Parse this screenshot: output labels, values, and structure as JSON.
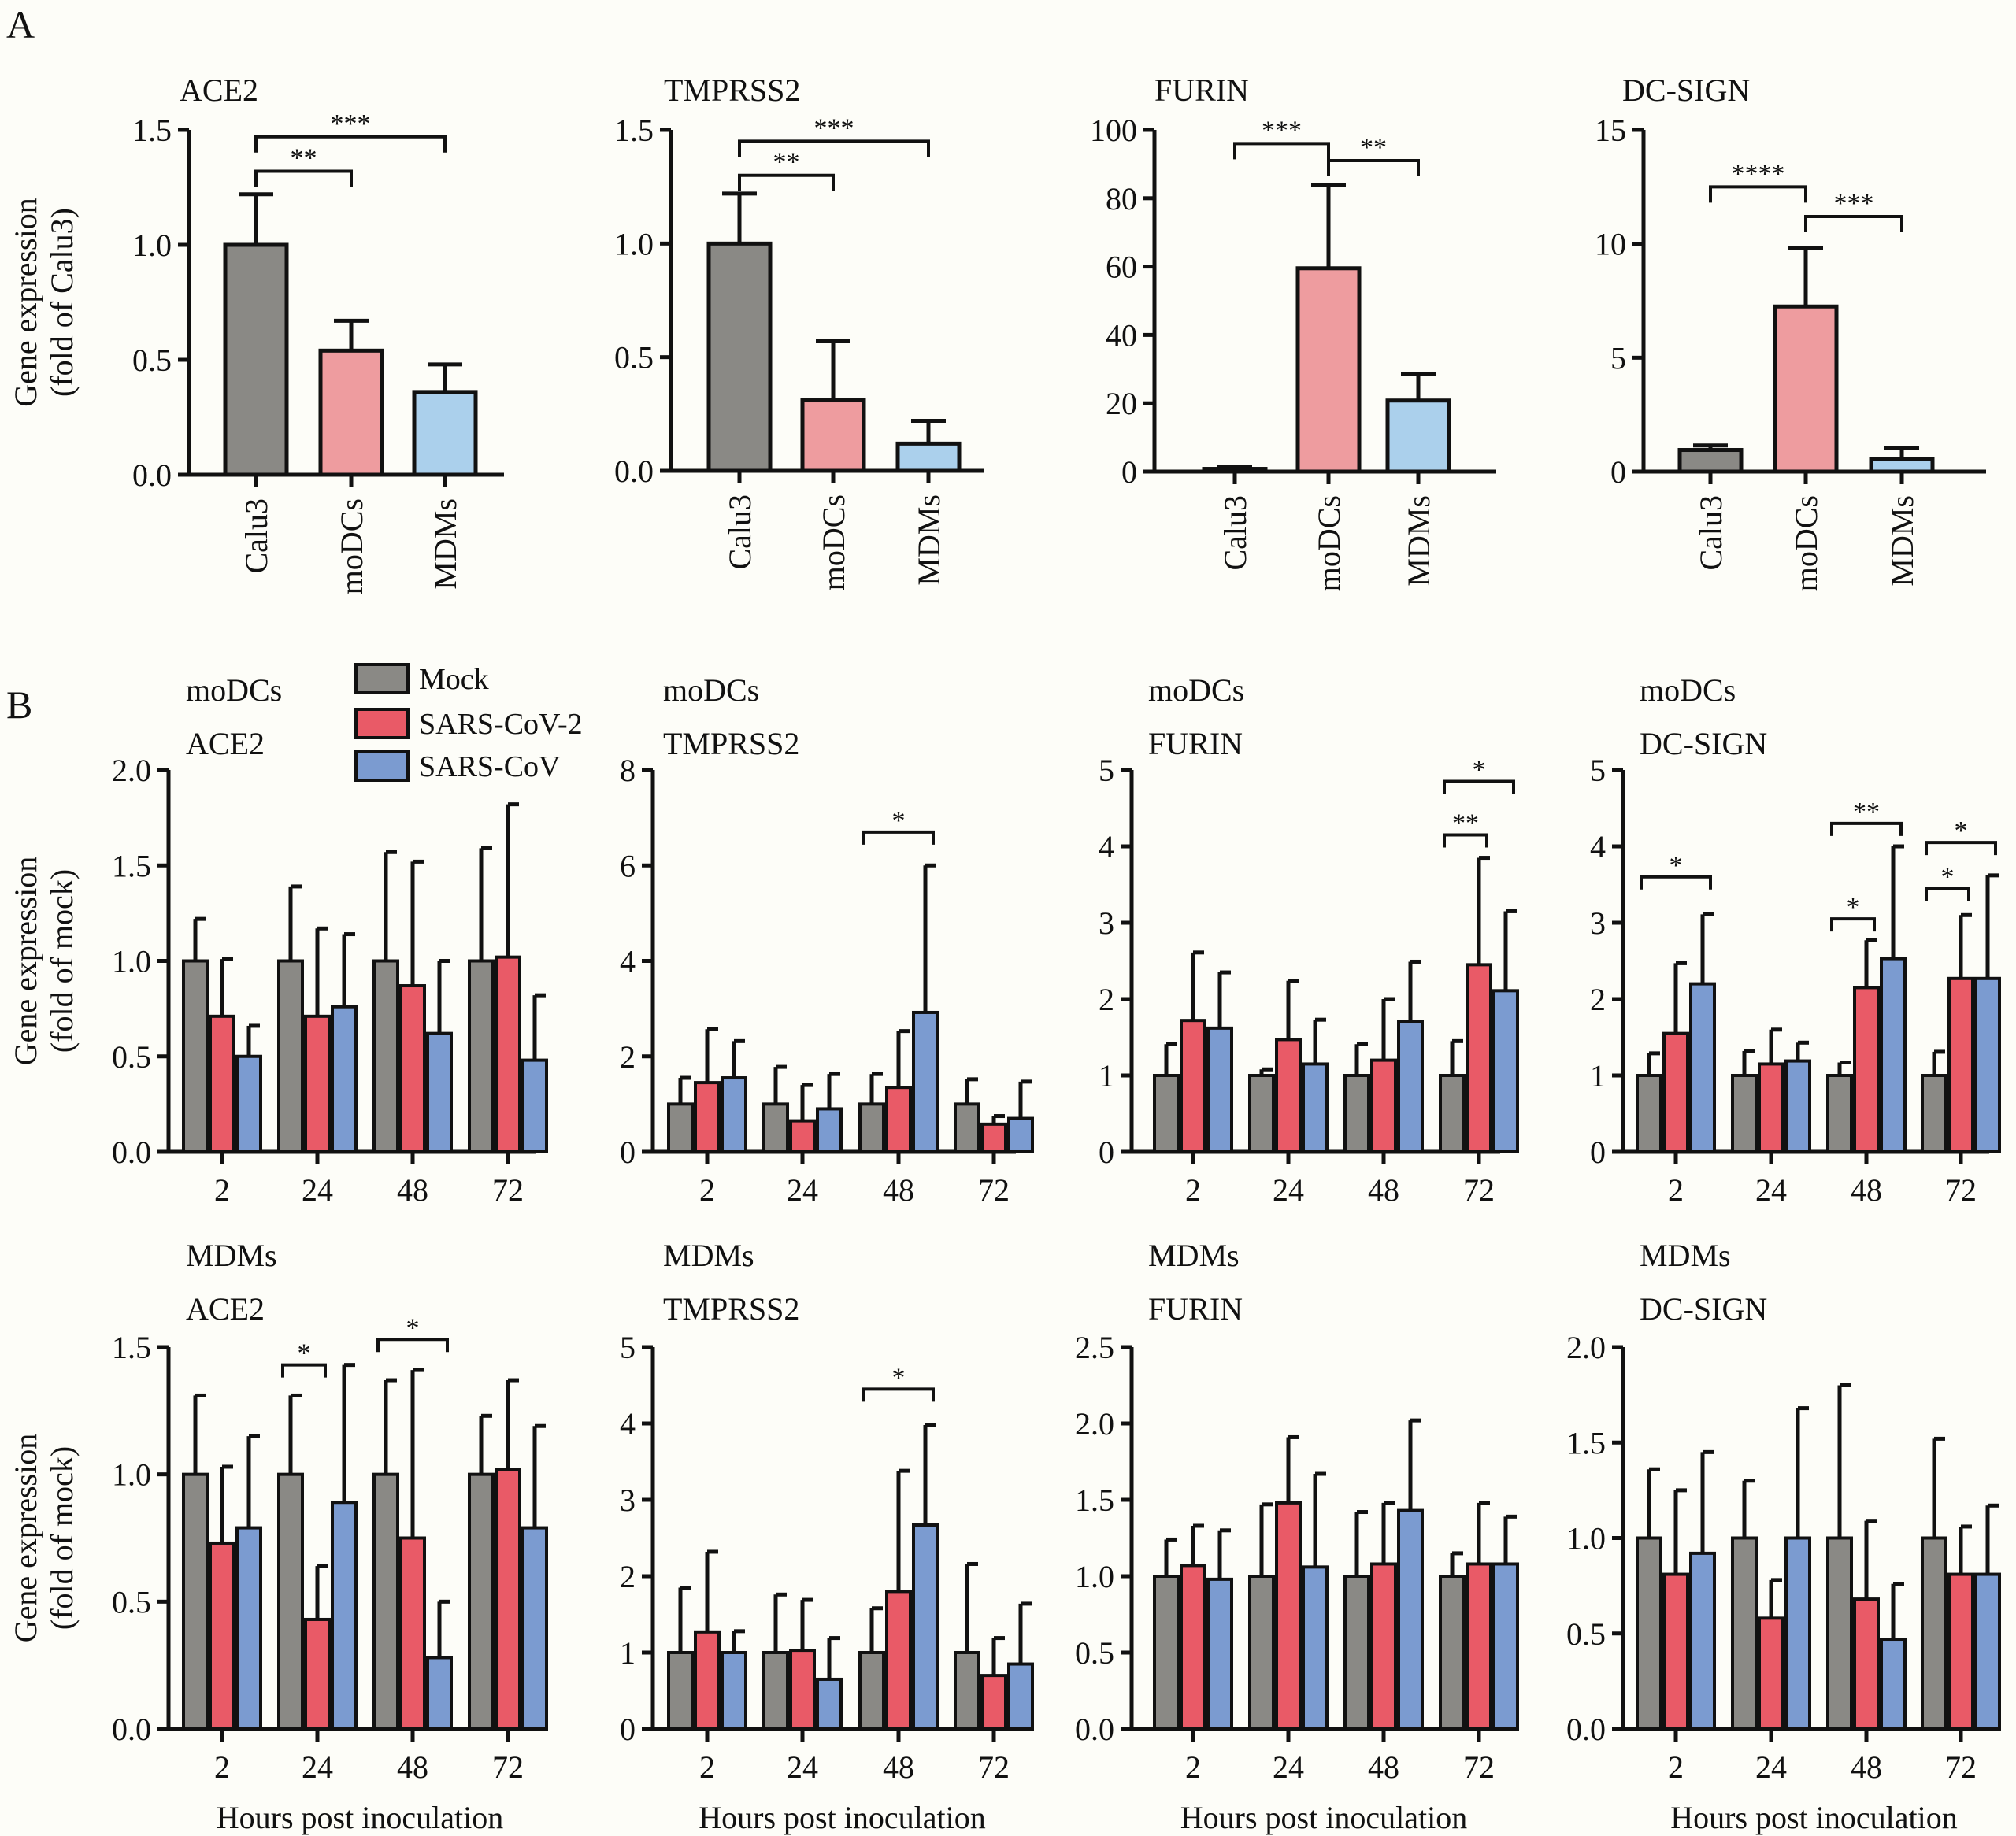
{
  "figure": {
    "panel_labels": [
      "A",
      "B"
    ],
    "legend": [
      {
        "label": "Mock",
        "color": "#8a8985"
      },
      {
        "label": "SARS-CoV-2",
        "color": "#e95a67"
      },
      {
        "label": "SARS-CoV",
        "color": "#7b9bd0"
      }
    ],
    "panel_a_colors": {
      "Calu3": "#8a8985",
      "moDCs": "#ee9c9f",
      "MDMs": "#abd0ec"
    }
  },
  "chart_data": [
    {
      "id": "A-ACE2",
      "panel": "A",
      "type": "bar",
      "title": "ACE2",
      "ylabel": [
        "Gene expression",
        "(fold of Calu3)"
      ],
      "xlabel": "",
      "categories": [
        "Calu3",
        "moDCs",
        "MDMs"
      ],
      "values": [
        1.0,
        0.54,
        0.36
      ],
      "error_upper": [
        1.22,
        0.67,
        0.48
      ],
      "ylim": [
        0,
        1.5
      ],
      "yticks": [
        "0.0",
        "0.5",
        "1.0",
        "1.5"
      ],
      "ytick_values": [
        0,
        0.5,
        1.0,
        1.5
      ],
      "significance": [
        {
          "from": "Calu3",
          "to": "moDCs",
          "label": "**",
          "level": 1.32
        },
        {
          "from": "Calu3",
          "to": "MDMs",
          "label": "***",
          "level": 1.47
        }
      ]
    },
    {
      "id": "A-TMPRSS2",
      "panel": "A",
      "type": "bar",
      "title": "TMPRSS2",
      "ylabel": [],
      "xlabel": "",
      "categories": [
        "Calu3",
        "moDCs",
        "MDMs"
      ],
      "values": [
        1.0,
        0.31,
        0.12
      ],
      "error_upper": [
        1.22,
        0.57,
        0.22
      ],
      "ylim": [
        0,
        1.5
      ],
      "yticks": [
        "0.0",
        "0.5",
        "1.0",
        "1.5"
      ],
      "ytick_values": [
        0,
        0.5,
        1.0,
        1.5
      ],
      "significance": [
        {
          "from": "Calu3",
          "to": "moDCs",
          "label": "**",
          "level": 1.3
        },
        {
          "from": "Calu3",
          "to": "MDMs",
          "label": "***",
          "level": 1.45
        }
      ]
    },
    {
      "id": "A-FURIN",
      "panel": "A",
      "type": "bar",
      "title": "FURIN",
      "ylabel": [],
      "xlabel": "",
      "categories": [
        "Calu3",
        "moDCs",
        "MDMs"
      ],
      "values": [
        0.8,
        59.5,
        20.8
      ],
      "error_upper": [
        1.5,
        84,
        28.5
      ],
      "ylim": [
        0,
        100
      ],
      "yticks": [
        "0",
        "20",
        "40",
        "60",
        "80",
        "100"
      ],
      "ytick_values": [
        0,
        20,
        40,
        60,
        80,
        100
      ],
      "significance": [
        {
          "from": "Calu3",
          "to": "moDCs",
          "label": "***",
          "level": 96
        },
        {
          "from": "moDCs",
          "to": "MDMs",
          "label": "**",
          "level": 91
        }
      ]
    },
    {
      "id": "A-DC-SIGN",
      "panel": "A",
      "type": "bar",
      "title": "DC-SIGN",
      "ylabel": [],
      "xlabel": "",
      "categories": [
        "Calu3",
        "moDCs",
        "MDMs"
      ],
      "values": [
        0.95,
        7.25,
        0.55
      ],
      "error_upper": [
        1.15,
        9.8,
        1.05
      ],
      "ylim": [
        0,
        15
      ],
      "yticks": [
        "0",
        "5",
        "10",
        "15"
      ],
      "ytick_values": [
        0,
        5,
        10,
        15
      ],
      "significance": [
        {
          "from": "Calu3",
          "to": "moDCs",
          "label": "****",
          "level": 12.5
        },
        {
          "from": "moDCs",
          "to": "MDMs",
          "label": "***",
          "level": 11.2
        }
      ]
    },
    {
      "id": "B-moDCs-ACE2",
      "panel": "B",
      "type": "bar",
      "cell": "moDCs",
      "title": "ACE2",
      "ylabel": [
        "Gene expression",
        "(fold of mock)"
      ],
      "xlabel": "",
      "categories": [
        "2",
        "24",
        "48",
        "72"
      ],
      "series": [
        {
          "name": "Mock",
          "values": [
            1.0,
            1.0,
            1.0,
            1.0
          ],
          "error_upper": [
            1.22,
            1.39,
            1.57,
            1.59
          ]
        },
        {
          "name": "SARS-CoV-2",
          "values": [
            0.71,
            0.71,
            0.87,
            1.02
          ],
          "error_upper": [
            1.01,
            1.17,
            1.52,
            1.82
          ]
        },
        {
          "name": "SARS-CoV",
          "values": [
            0.5,
            0.76,
            0.62,
            0.48
          ],
          "error_upper": [
            0.66,
            1.14,
            1.0,
            0.82
          ]
        }
      ],
      "ylim": [
        0,
        2.0
      ],
      "yticks": [
        "0.0",
        "0.5",
        "1.0",
        "1.5",
        "2.0"
      ],
      "ytick_values": [
        0,
        0.5,
        1.0,
        1.5,
        2.0
      ],
      "significance": []
    },
    {
      "id": "B-moDCs-TMPRSS2",
      "panel": "B",
      "type": "bar",
      "cell": "moDCs",
      "title": "TMPRSS2",
      "ylabel": [],
      "xlabel": "",
      "categories": [
        "2",
        "24",
        "48",
        "72"
      ],
      "series": [
        {
          "name": "Mock",
          "values": [
            1.0,
            1.0,
            1.0,
            1.0
          ],
          "error_upper": [
            1.55,
            1.78,
            1.63,
            1.52
          ]
        },
        {
          "name": "SARS-CoV-2",
          "values": [
            1.45,
            0.65,
            1.35,
            0.58
          ],
          "error_upper": [
            2.57,
            1.4,
            2.53,
            0.75
          ]
        },
        {
          "name": "SARS-CoV",
          "values": [
            1.55,
            0.9,
            2.92,
            0.7
          ],
          "error_upper": [
            2.32,
            1.63,
            6.0,
            1.47
          ]
        }
      ],
      "ylim": [
        0,
        8
      ],
      "yticks": [
        "0",
        "2",
        "4",
        "6",
        "8"
      ],
      "ytick_values": [
        0,
        2,
        4,
        6,
        8
      ],
      "significance": [
        {
          "group": "48",
          "from": 0,
          "to": 2,
          "label": "*",
          "level": 6.7
        }
      ]
    },
    {
      "id": "B-moDCs-FURIN",
      "panel": "B",
      "type": "bar",
      "cell": "moDCs",
      "title": "FURIN",
      "ylabel": [],
      "xlabel": "",
      "categories": [
        "2",
        "24",
        "48",
        "72"
      ],
      "series": [
        {
          "name": "Mock",
          "values": [
            1.0,
            1.0,
            1.0,
            1.0
          ],
          "error_upper": [
            1.41,
            1.08,
            1.41,
            1.45
          ]
        },
        {
          "name": "SARS-CoV-2",
          "values": [
            1.72,
            1.47,
            1.2,
            2.45
          ],
          "error_upper": [
            2.61,
            2.24,
            2.0,
            3.85
          ]
        },
        {
          "name": "SARS-CoV",
          "values": [
            1.62,
            1.15,
            1.71,
            2.11
          ],
          "error_upper": [
            2.35,
            1.73,
            2.49,
            3.15
          ]
        }
      ],
      "ylim": [
        0,
        5
      ],
      "yticks": [
        "0",
        "1",
        "2",
        "3",
        "4",
        "5"
      ],
      "ytick_values": [
        0,
        1,
        2,
        3,
        4,
        5
      ],
      "significance": [
        {
          "group": "72",
          "from": 0,
          "to": 1,
          "label": "**",
          "level": 4.15
        },
        {
          "group": "72",
          "from": 0,
          "to": 2,
          "label": "*",
          "level": 4.85
        }
      ]
    },
    {
      "id": "B-moDCs-DC-SIGN",
      "panel": "B",
      "type": "bar",
      "cell": "moDCs",
      "title": "DC-SIGN",
      "ylabel": [],
      "xlabel": "",
      "categories": [
        "2",
        "24",
        "48",
        "72"
      ],
      "series": [
        {
          "name": "Mock",
          "values": [
            1.0,
            1.0,
            1.0,
            1.0
          ],
          "error_upper": [
            1.29,
            1.32,
            1.17,
            1.31
          ]
        },
        {
          "name": "SARS-CoV-2",
          "values": [
            1.55,
            1.15,
            2.15,
            2.27
          ],
          "error_upper": [
            2.47,
            1.6,
            2.77,
            3.1
          ]
        },
        {
          "name": "SARS-CoV",
          "values": [
            2.2,
            1.19,
            2.53,
            2.27
          ],
          "error_upper": [
            3.11,
            1.43,
            4.0,
            3.62
          ]
        }
      ],
      "ylim": [
        0,
        5
      ],
      "yticks": [
        "0",
        "1",
        "2",
        "3",
        "4",
        "5"
      ],
      "ytick_values": [
        0,
        1,
        2,
        3,
        4,
        5
      ],
      "significance": [
        {
          "group": "2",
          "from": 0,
          "to": 2,
          "label": "*",
          "level": 3.6
        },
        {
          "group": "48",
          "from": 0,
          "to": 1,
          "label": "*",
          "level": 3.05
        },
        {
          "group": "48",
          "from": 0,
          "to": 2,
          "label": "**",
          "level": 4.3
        },
        {
          "group": "72",
          "from": 0,
          "to": 1,
          "label": "*",
          "level": 3.45
        },
        {
          "group": "72",
          "from": 0,
          "to": 2,
          "label": "*",
          "level": 4.05
        }
      ]
    },
    {
      "id": "B-MDMs-ACE2",
      "panel": "B",
      "type": "bar",
      "cell": "MDMs",
      "title": "ACE2",
      "ylabel": [
        "Gene expression",
        "(fold of mock)"
      ],
      "xlabel": "Hours post inoculation",
      "categories": [
        "2",
        "24",
        "48",
        "72"
      ],
      "series": [
        {
          "name": "Mock",
          "values": [
            1.0,
            1.0,
            1.0,
            1.0
          ],
          "error_upper": [
            1.31,
            1.31,
            1.37,
            1.23
          ]
        },
        {
          "name": "SARS-CoV-2",
          "values": [
            0.73,
            0.43,
            0.75,
            1.02
          ],
          "error_upper": [
            1.03,
            0.64,
            1.41,
            1.37
          ]
        },
        {
          "name": "SARS-CoV",
          "values": [
            0.79,
            0.89,
            0.28,
            0.79
          ],
          "error_upper": [
            1.15,
            1.43,
            0.5,
            1.19
          ]
        }
      ],
      "ylim": [
        0,
        1.5
      ],
      "yticks": [
        "0.0",
        "0.5",
        "1.0",
        "1.5"
      ],
      "ytick_values": [
        0,
        0.5,
        1.0,
        1.5
      ],
      "significance": [
        {
          "group": "24",
          "from": 0,
          "to": 1,
          "label": "*",
          "level": 1.43
        },
        {
          "group": "48",
          "from": 0,
          "to": 2,
          "label": "*",
          "level": 1.53
        }
      ]
    },
    {
      "id": "B-MDMs-TMPRSS2",
      "panel": "B",
      "type": "bar",
      "cell": "MDMs",
      "title": "TMPRSS2",
      "ylabel": [],
      "xlabel": "Hours post inoculation",
      "categories": [
        "2",
        "24",
        "48",
        "72"
      ],
      "series": [
        {
          "name": "Mock",
          "values": [
            1.0,
            1.0,
            1.0,
            1.0
          ],
          "error_upper": [
            1.85,
            1.76,
            1.58,
            2.16
          ]
        },
        {
          "name": "SARS-CoV-2",
          "values": [
            1.27,
            1.03,
            1.8,
            0.7
          ],
          "error_upper": [
            2.32,
            1.69,
            3.38,
            1.19
          ]
        },
        {
          "name": "SARS-CoV",
          "values": [
            1.0,
            0.65,
            2.67,
            0.85
          ],
          "error_upper": [
            1.28,
            1.19,
            3.98,
            1.64
          ]
        }
      ],
      "ylim": [
        0,
        5
      ],
      "yticks": [
        "0",
        "1",
        "2",
        "3",
        "4",
        "5"
      ],
      "ytick_values": [
        0,
        1,
        2,
        3,
        4,
        5
      ],
      "significance": [
        {
          "group": "48",
          "from": 0,
          "to": 2,
          "label": "*",
          "level": 4.45
        }
      ]
    },
    {
      "id": "B-MDMs-FURIN",
      "panel": "B",
      "type": "bar",
      "cell": "MDMs",
      "title": "FURIN",
      "ylabel": [],
      "xlabel": "Hours post inoculation",
      "categories": [
        "2",
        "24",
        "48",
        "72"
      ],
      "series": [
        {
          "name": "Mock",
          "values": [
            1.0,
            1.0,
            1.0,
            1.0
          ],
          "error_upper": [
            1.24,
            1.47,
            1.42,
            1.15
          ]
        },
        {
          "name": "SARS-CoV-2",
          "values": [
            1.07,
            1.48,
            1.08,
            1.08
          ],
          "error_upper": [
            1.33,
            1.91,
            1.48,
            1.48
          ]
        },
        {
          "name": "SARS-CoV",
          "values": [
            0.98,
            1.06,
            1.43,
            1.08
          ],
          "error_upper": [
            1.3,
            1.67,
            2.02,
            1.39
          ]
        }
      ],
      "ylim": [
        0,
        2.5
      ],
      "yticks": [
        "0.0",
        "0.5",
        "1.0",
        "1.5",
        "2.0",
        "2.5"
      ],
      "ytick_values": [
        0,
        0.5,
        1.0,
        1.5,
        2.0,
        2.5
      ],
      "significance": []
    },
    {
      "id": "B-MDMs-DC-SIGN",
      "panel": "B",
      "type": "bar",
      "cell": "MDMs",
      "title": "DC-SIGN",
      "ylabel": [],
      "xlabel": "Hours post inoculation",
      "categories": [
        "2",
        "24",
        "48",
        "72"
      ],
      "series": [
        {
          "name": "Mock",
          "values": [
            1.0,
            1.0,
            1.0,
            1.0
          ],
          "error_upper": [
            1.36,
            1.3,
            1.8,
            1.52
          ]
        },
        {
          "name": "SARS-CoV-2",
          "values": [
            0.81,
            0.58,
            0.68,
            0.81
          ],
          "error_upper": [
            1.25,
            0.78,
            1.09,
            1.06
          ]
        },
        {
          "name": "SARS-CoV",
          "values": [
            0.92,
            1.0,
            0.47,
            0.81
          ],
          "error_upper": [
            1.45,
            1.68,
            0.76,
            1.17
          ]
        }
      ],
      "ylim": [
        0,
        2.0
      ],
      "yticks": [
        "0.0",
        "0.5",
        "1.0",
        "1.5",
        "2.0"
      ],
      "ytick_values": [
        0,
        0.5,
        1.0,
        1.5,
        2.0
      ],
      "significance": []
    }
  ]
}
